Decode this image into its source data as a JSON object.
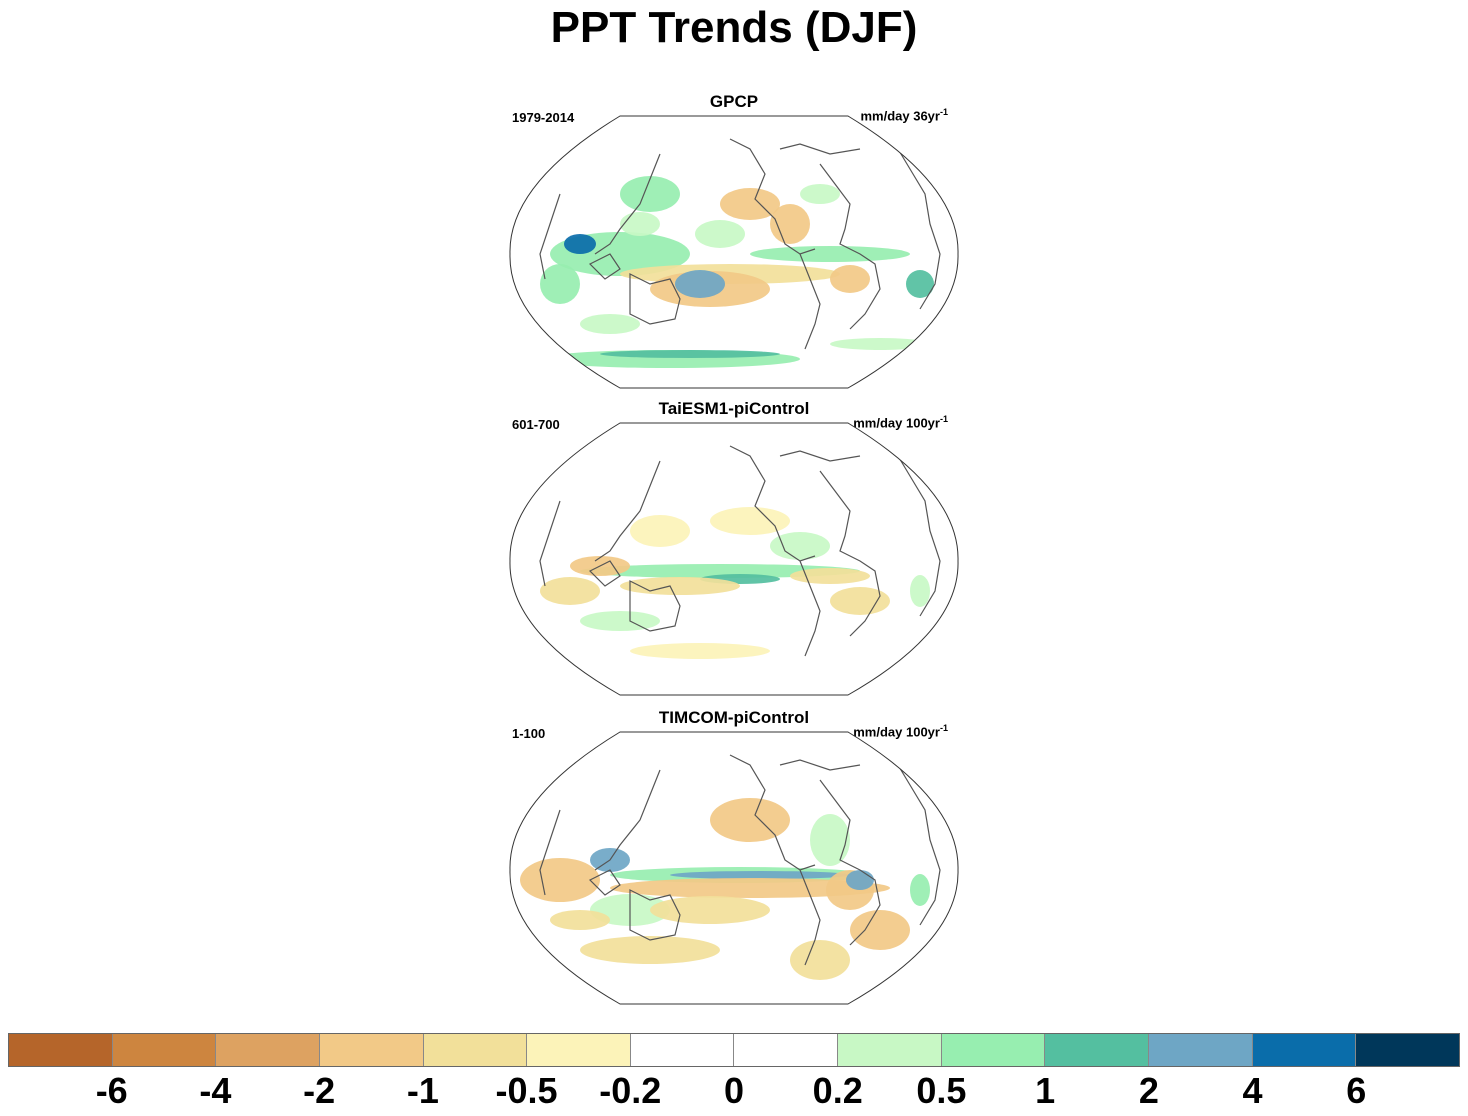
{
  "title": "PPT Trends (DJF)",
  "panels": [
    {
      "title": "GPCP",
      "period": "1979-2014",
      "units": "mm/day 36yr",
      "units_sup": "-1"
    },
    {
      "title": "TaiESM1-piControl",
      "period": "601-700",
      "units": "mm/day 100yr",
      "units_sup": "-1"
    },
    {
      "title": "TIMCOM-piControl",
      "period": "1-100",
      "units": "mm/day 100yr",
      "units_sup": "-1"
    }
  ],
  "colorbar": {
    "colors": [
      "#b5652a",
      "#cd853f",
      "#dda261",
      "#f2c987",
      "#f2e09a",
      "#fcf3b9",
      "#ffffff",
      "#ffffff",
      "#c8f8c5",
      "#97eeb0",
      "#54bfa0",
      "#6ea6c5",
      "#0a6daa",
      "#00375a"
    ],
    "labels": [
      "-6",
      "-4",
      "-2",
      "-1",
      "-0.5",
      "-0.2",
      "0",
      "0.2",
      "0.5",
      "1",
      "2",
      "4",
      "6"
    ]
  },
  "colors": {
    "coastline": "#555555",
    "map_border": "#333333"
  }
}
